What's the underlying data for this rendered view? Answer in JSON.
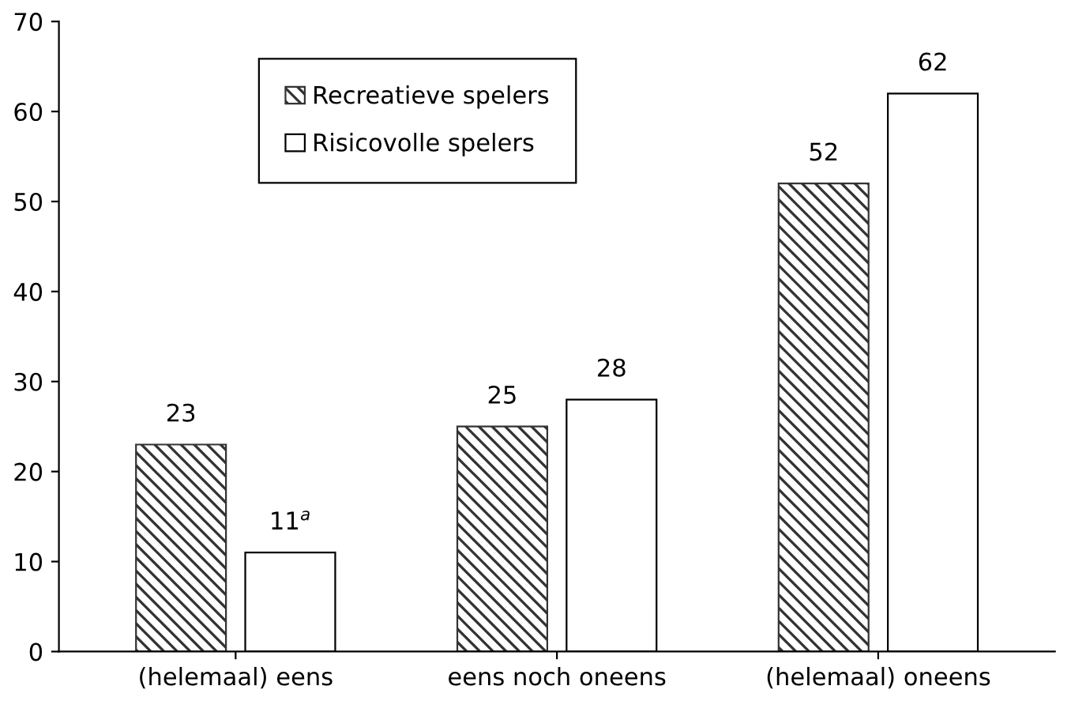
{
  "chart_data": {
    "type": "bar",
    "categories": [
      "(helemaal) eens",
      "eens noch oneens",
      "(helemaal) oneens"
    ],
    "series": [
      {
        "name": "Recreatieve spelers",
        "color": "#333333",
        "values": [
          23,
          25,
          52
        ],
        "value_labels": [
          "23",
          "25",
          "52"
        ]
      },
      {
        "name": "Risicovolle spelers",
        "color": "#ffffff",
        "values": [
          11,
          28,
          62
        ],
        "value_labels": [
          "11$^{a}$",
          "28",
          "62"
        ]
      }
    ],
    "ylim": [
      0,
      70
    ],
    "yticks": [
      0,
      10,
      20,
      30,
      40,
      50,
      60,
      70
    ],
    "grid": false,
    "legend": "top"
  }
}
